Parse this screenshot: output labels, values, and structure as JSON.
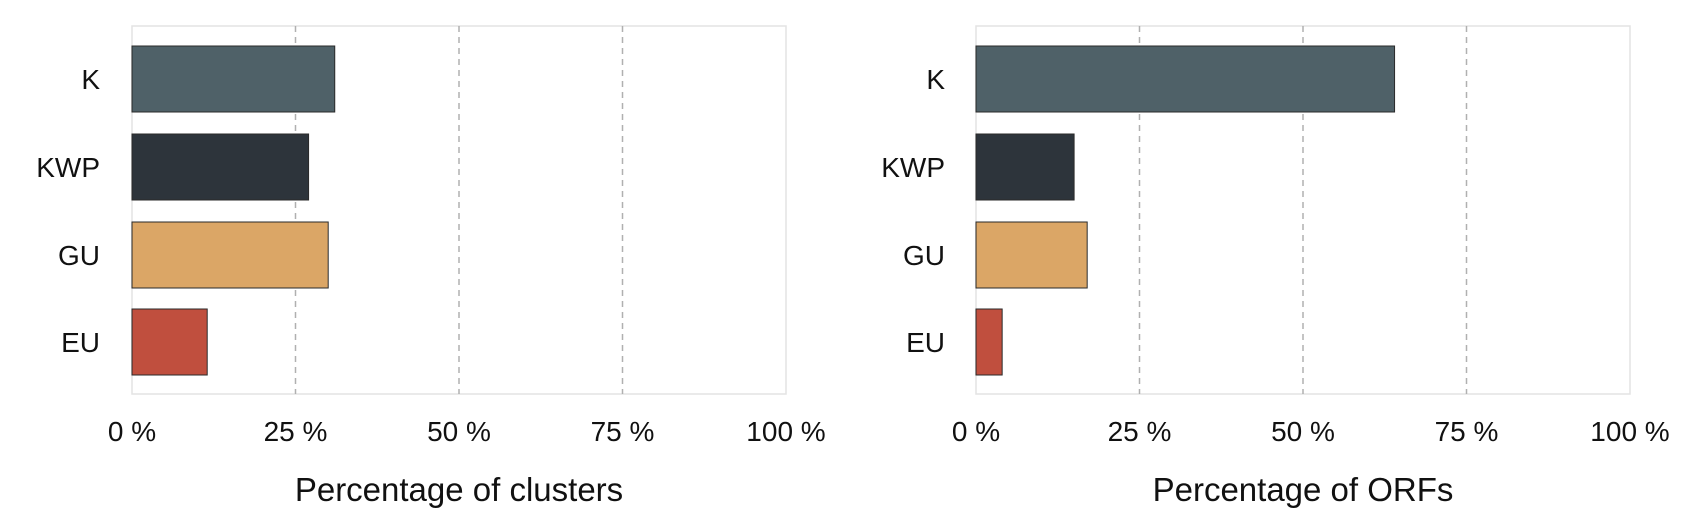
{
  "chart_data": [
    {
      "type": "bar",
      "orientation": "horizontal",
      "categories": [
        "K",
        "KWP",
        "GU",
        "EU"
      ],
      "values": [
        31,
        27,
        30,
        11.5
      ],
      "colors": [
        "#4f6168",
        "#2d343b",
        "#dba666",
        "#c04f3e"
      ],
      "xlabel": "Percentage of clusters",
      "ylabel": "",
      "xlim": [
        0,
        100
      ],
      "ticks": [
        "0 %",
        "25 %",
        "50 %",
        "75 %",
        "100 %"
      ],
      "grid": "vertical dashed"
    },
    {
      "type": "bar",
      "orientation": "horizontal",
      "categories": [
        "K",
        "KWP",
        "GU",
        "EU"
      ],
      "values": [
        64,
        15,
        17,
        4
      ],
      "colors": [
        "#4f6168",
        "#2d343b",
        "#dba666",
        "#c04f3e"
      ],
      "xlabel": "Percentage of ORFs",
      "ylabel": "",
      "xlim": [
        0,
        100
      ],
      "ticks": [
        "0 %",
        "25 %",
        "50 %",
        "75 %",
        "100 %"
      ],
      "grid": "vertical dashed"
    }
  ]
}
